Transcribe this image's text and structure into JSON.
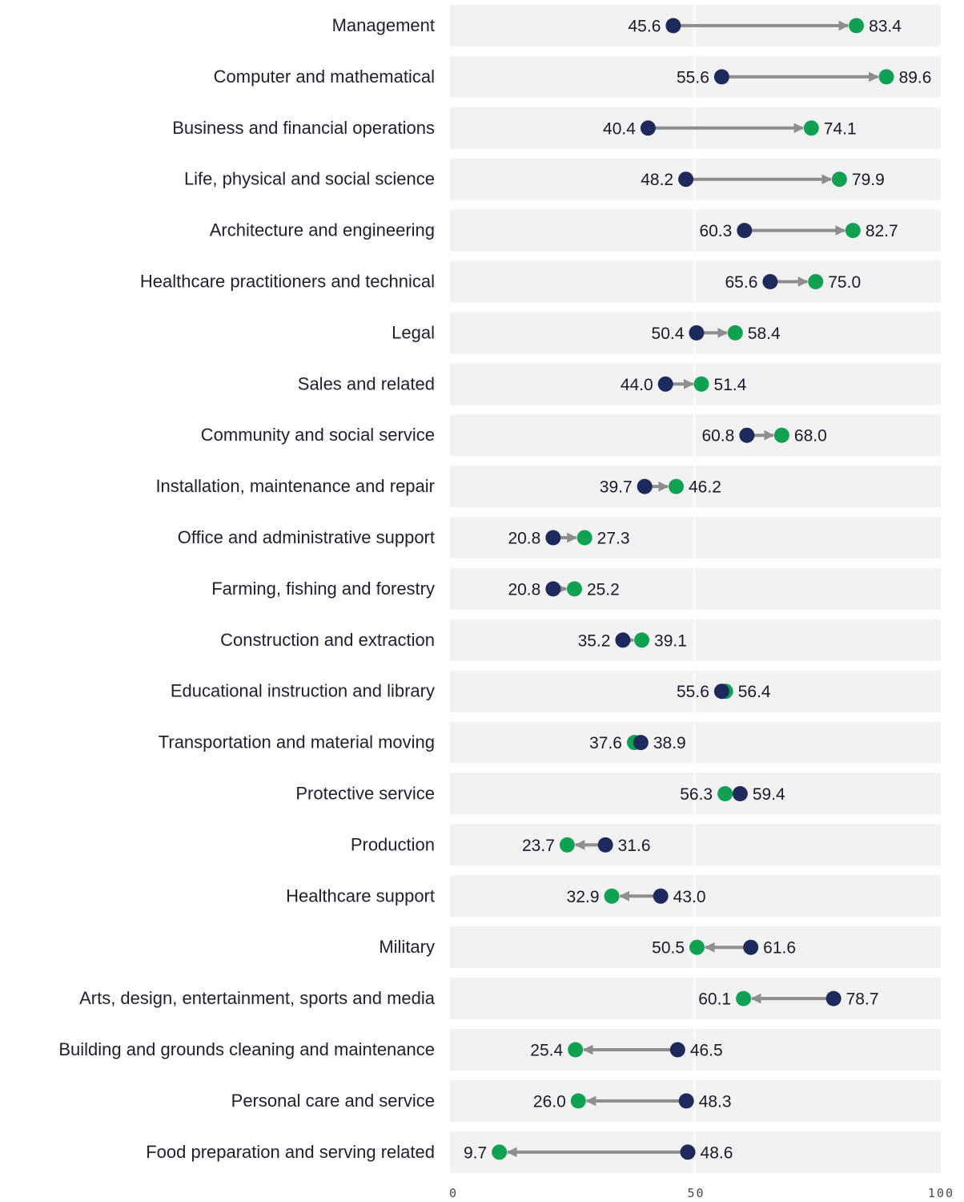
{
  "chart_data": {
    "type": "dumbbell-arrow",
    "title": "",
    "xlabel": "",
    "ylabel": "",
    "xlim": [
      0,
      100
    ],
    "x_ticks": [
      "0",
      "50",
      "100"
    ],
    "grid": true,
    "colors": {
      "start": "#1e2a5e",
      "end": "#10a152",
      "arrow": "#8e8e8e",
      "row_background": "#f2f2f2",
      "grid": "#ffffff"
    },
    "categories": [
      "Management",
      "Computer and mathematical",
      "Business and financial operations",
      "Life, physical and social science",
      "Architecture and engineering",
      "Healthcare practitioners and technical",
      "Legal",
      "Sales and related",
      "Community and social service",
      "Installation, maintenance and repair",
      "Office and administrative support",
      "Farming, fishing and forestry",
      "Construction and extraction",
      "Educational instruction and library",
      "Transportation and material moving",
      "Protective service",
      "Production",
      "Healthcare support",
      "Military",
      "Arts, design, entertainment, sports and media",
      "Building and grounds cleaning and maintenance",
      "Personal care and service",
      "Food preparation and serving related"
    ],
    "series": [
      {
        "values": [
          45.6,
          55.6,
          40.4,
          48.2,
          60.3,
          65.6,
          50.4,
          44.0,
          60.8,
          39.7,
          20.8,
          20.8,
          35.2,
          55.6,
          38.9,
          59.4,
          31.6,
          43.0,
          61.6,
          78.7,
          46.5,
          48.3,
          48.6
        ],
        "labels": [
          "45.6",
          "55.6",
          "40.4",
          "48.2",
          "60.3",
          "65.6",
          "50.4",
          "44.0",
          "60.8",
          "39.7",
          "20.8",
          "20.8",
          "35.2",
          "55.6",
          "38.9",
          "59.4",
          "31.6",
          "43.0",
          "61.6",
          "78.7",
          "46.5",
          "48.3",
          "48.6"
        ]
      },
      {
        "values": [
          83.4,
          89.6,
          74.1,
          79.9,
          82.7,
          75.0,
          58.4,
          51.4,
          68.0,
          46.2,
          27.3,
          25.2,
          39.1,
          56.4,
          37.6,
          56.3,
          23.7,
          32.9,
          50.5,
          60.1,
          25.4,
          26.0,
          9.7
        ],
        "labels": [
          "83.4",
          "89.6",
          "74.1",
          "79.9",
          "82.7",
          "75.0",
          "58.4",
          "51.4",
          "68.0",
          "46.2",
          "27.3",
          "25.2",
          "39.1",
          "56.4",
          "37.6",
          "56.3",
          "23.7",
          "32.9",
          "50.5",
          "60.1",
          "25.4",
          "26.0",
          "9.7"
        ]
      }
    ]
  }
}
